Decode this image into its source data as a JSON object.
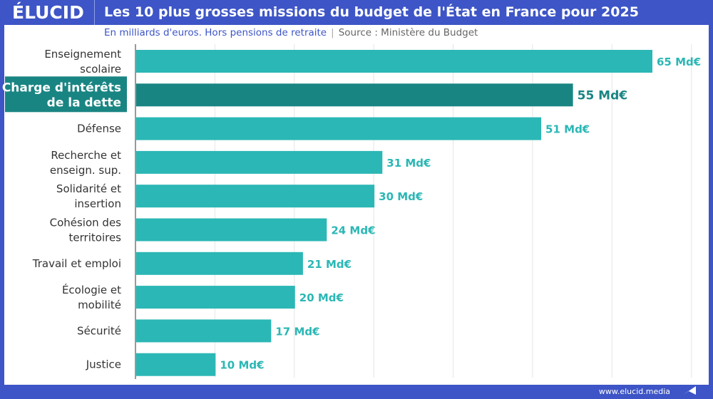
{
  "header": {
    "logo": "ÉLUCID",
    "title": "Les 10 plus grosses missions du budget de l'État en France pour 2025"
  },
  "subtitle": {
    "text": "En milliards d'euros. Hors pensions de retraite",
    "separator": "|",
    "source": "Source : Ministère du Budget"
  },
  "footer": {
    "url": "www.elucid.media"
  },
  "colors": {
    "brand": "#3d55c6",
    "bar": "#2bb7b5",
    "highlight": "#198583",
    "label": "#333333"
  },
  "chart_data": {
    "type": "bar",
    "orientation": "horizontal",
    "unit": "Md€",
    "categories": [
      [
        "Enseignement",
        "scolaire"
      ],
      [
        "Charge d'intérêts",
        "de la dette"
      ],
      [
        "Défense"
      ],
      [
        "Recherche et",
        "enseign. sup."
      ],
      [
        "Solidarité et",
        "insertion"
      ],
      [
        "Cohésion des",
        "territoires"
      ],
      [
        "Travail et emploi"
      ],
      [
        "Écologie et",
        "mobilité"
      ],
      [
        "Sécurité"
      ],
      [
        "Justice"
      ]
    ],
    "values": [
      65,
      55,
      51,
      31,
      30,
      24,
      21,
      20,
      17,
      10
    ],
    "data_labels": [
      "65 Md€",
      "55 Md€",
      "51 Md€",
      "31 Md€",
      "30 Md€",
      "24 Md€",
      "21 Md€",
      "20 Md€",
      "17 Md€",
      "10 Md€"
    ],
    "highlighted_index": 1,
    "xlim": [
      0,
      70
    ],
    "grid": true
  }
}
